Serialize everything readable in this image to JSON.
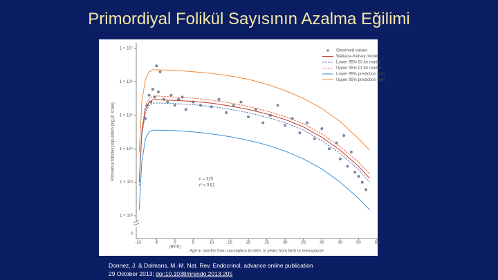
{
  "title": "Primordiyal Folikül Sayısının Azalma Eğilimi",
  "citation": {
    "line1": "Donnez, J. & Dolmans, M.-M. Nat. Rev. Endocrinol. advance online publication",
    "line2": "29 October 2013;",
    "doi": "doi:10.1038/nrendo.2013.205"
  },
  "chart_data": {
    "type": "scatter",
    "y_label": "Primordial follicles population (log10 scale)",
    "x_label": "Age in months from conception to birth; in years from birth to menopause",
    "log_y": true,
    "xlim": [
      -10.5,
      55
    ],
    "ylim": [
      100,
      15000000
    ],
    "xticks": [
      -10,
      -5,
      0,
      5,
      10,
      15,
      20,
      25,
      30,
      35,
      40,
      45,
      50,
      55
    ],
    "yticks": [
      {
        "value": 10000000,
        "label": "1 × 10⁷"
      },
      {
        "value": 1000000,
        "label": "1 × 10⁶"
      },
      {
        "value": 100000,
        "label": "1 × 10⁵"
      },
      {
        "value": 10000,
        "label": "1 × 10⁴"
      },
      {
        "value": 1000,
        "label": "1 × 10³"
      },
      {
        "value": 100,
        "label": "1 × 10²"
      }
    ],
    "zero_label": "0",
    "birth_label": "(Birth)",
    "annotations": [
      "n = 325",
      "r² = 0.81"
    ],
    "x": [
      -9.7,
      -9,
      -8,
      -7,
      -6,
      -5,
      0,
      5,
      10,
      15,
      20,
      25,
      30,
      35,
      40,
      45,
      50,
      53
    ],
    "series": [
      {
        "name": "Observed values",
        "color": "#7f93ab",
        "mode": "markers",
        "x": [
          -8,
          -7.5,
          -7,
          -6.5,
          -6,
          -5.5,
          -5,
          -4.5,
          -4,
          -3,
          -2,
          -1,
          0,
          1,
          2,
          3,
          5,
          7,
          10,
          12,
          14,
          16,
          18,
          20,
          22,
          24,
          26,
          28,
          30,
          32,
          34,
          36,
          38,
          40,
          42,
          44,
          45,
          46,
          47,
          48,
          49,
          50,
          51,
          52
        ],
        "values": [
          80000,
          200000,
          400000,
          250000,
          600000,
          350000,
          3000000,
          500000,
          2000000,
          300000,
          250000,
          400000,
          200000,
          300000,
          350000,
          150000,
          250000,
          200000,
          180000,
          300000,
          120000,
          200000,
          250000,
          90000,
          150000,
          60000,
          100000,
          200000,
          50000,
          80000,
          30000,
          60000,
          20000,
          40000,
          10000,
          15000,
          5000,
          25000,
          3000,
          8000,
          2000,
          1500,
          1000,
          600
        ]
      },
      {
        "name": "Wallace–Kelsey model",
        "color": "#c0392b",
        "mode": "lines",
        "dash": false,
        "values": [
          1000,
          30000,
          150000,
          250000,
          290000,
          295000,
          280000,
          260000,
          230000,
          190000,
          150000,
          110000,
          75000,
          45000,
          22000,
          9000,
          3000,
          1300
        ]
      },
      {
        "name": "Lower 95% CI for model",
        "color": "#5577aa",
        "mode": "lines",
        "dash": true,
        "values": [
          800,
          24000,
          120000,
          200000,
          230000,
          235000,
          225000,
          208000,
          184000,
          152000,
          120000,
          88000,
          60000,
          36000,
          17500,
          7200,
          2400,
          1000
        ]
      },
      {
        "name": "Upper 95% CI for model",
        "color": "#e0603a",
        "mode": "lines",
        "dash": true,
        "values": [
          1300,
          38000,
          190000,
          320000,
          370000,
          380000,
          350000,
          325000,
          285000,
          235000,
          185000,
          135000,
          92000,
          56000,
          28000,
          11500,
          4000,
          1800
        ]
      },
      {
        "name": "Lower 95% prediction limit",
        "color": "#3a8fd8",
        "mode": "lines",
        "dash": false,
        "values": [
          150,
          4000,
          20000,
          32000,
          36000,
          36000,
          35000,
          32000,
          28000,
          23000,
          18000,
          13000,
          8500,
          5000,
          2500,
          1000,
          330,
          150
        ]
      },
      {
        "name": "Upper 95% prediction limit",
        "color": "#ee8a3a",
        "mode": "lines",
        "dash": false,
        "values": [
          8000,
          250000,
          1200000,
          2000000,
          2300000,
          2300000,
          2200000,
          2000000,
          1800000,
          1500000,
          1200000,
          850000,
          550000,
          320000,
          160000,
          65000,
          20000,
          9000
        ]
      }
    ]
  }
}
